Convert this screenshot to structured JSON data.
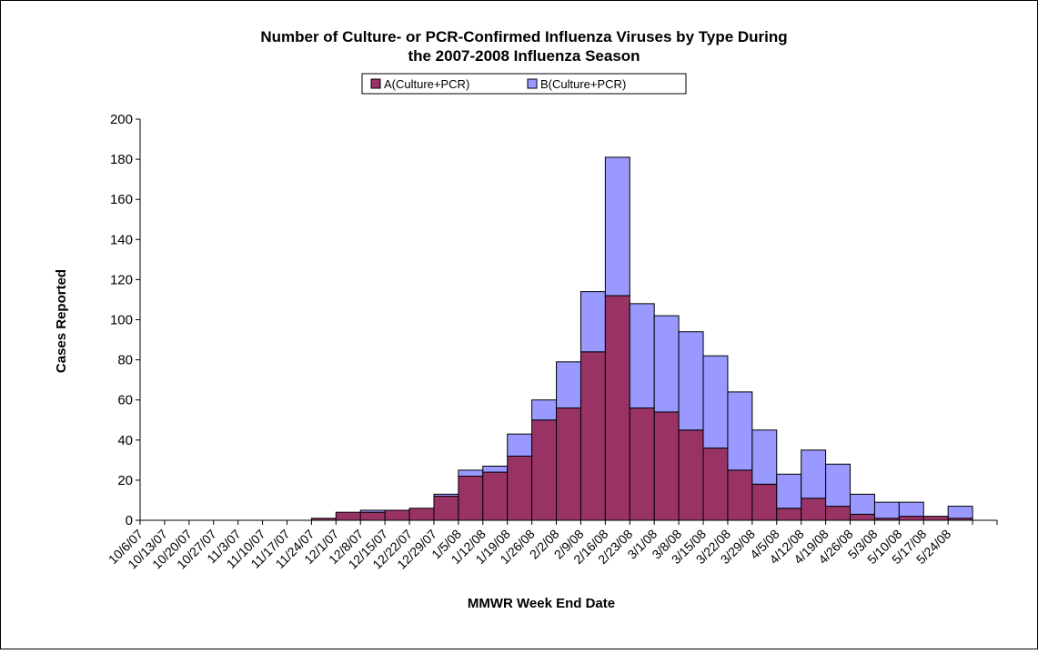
{
  "colors": {
    "series_a": "#993366",
    "series_b": "#9999ff",
    "axis": "#000000",
    "background": "#ffffff"
  },
  "chart_data": {
    "type": "bar",
    "stacked": true,
    "title_line1": "Number of Culture- or PCR-Confirmed Influenza Viruses by Type During",
    "title_line2": "the 2007-2008 Influenza Season",
    "xlabel": "MMWR Week End Date",
    "ylabel": "Cases Reported",
    "ylim": [
      0,
      200
    ],
    "yticks": [
      0,
      20,
      40,
      60,
      80,
      100,
      120,
      140,
      160,
      180,
      200
    ],
    "grid": false,
    "legend_position": "top-center",
    "categories": [
      "10/6/07",
      "10/13/07",
      "10/20/07",
      "10/27/07",
      "11/3/07",
      "11/10/07",
      "11/17/07",
      "11/24/07",
      "12/1/07",
      "12/8/07",
      "12/15/07",
      "12/22/07",
      "12/29/07",
      "1/5/08",
      "1/12/08",
      "1/19/08",
      "1/26/08",
      "2/2/08",
      "2/9/08",
      "2/16/08",
      "2/23/08",
      "3/1/08",
      "3/8/08",
      "3/15/08",
      "3/22/08",
      "3/29/08",
      "4/5/08",
      "4/12/08",
      "4/19/08",
      "4/26/08",
      "5/3/08",
      "5/10/08",
      "5/17/08",
      "5/24/08"
    ],
    "series": [
      {
        "name": "A(Culture+PCR)",
        "values": [
          0,
          0,
          0,
          0,
          0,
          0,
          0,
          1,
          4,
          4,
          5,
          6,
          12,
          22,
          24,
          32,
          50,
          56,
          84,
          112,
          56,
          54,
          45,
          36,
          25,
          18,
          6,
          11,
          7,
          3,
          1,
          2,
          2,
          1
        ]
      },
      {
        "name": "B(Culture+PCR)",
        "values": [
          0,
          0,
          0,
          0,
          0,
          0,
          0,
          0,
          0,
          1,
          0,
          0,
          1,
          3,
          3,
          11,
          10,
          23,
          30,
          69,
          52,
          48,
          49,
          46,
          39,
          27,
          17,
          24,
          21,
          10,
          8,
          7,
          0,
          6
        ]
      }
    ]
  }
}
